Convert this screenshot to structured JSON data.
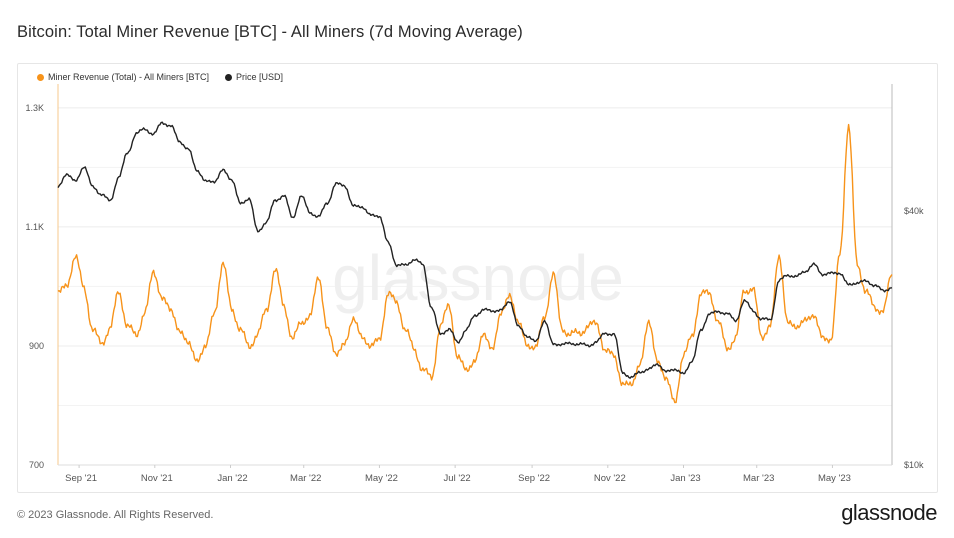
{
  "title": "Bitcoin: Total Miner Revenue [BTC] - All Miners (7d Moving Average)",
  "footer": {
    "copyright": "© 2023 Glassnode. All Rights Reserved.",
    "logo_text": "glassnode"
  },
  "watermark": "glassnode",
  "colors": {
    "revenue": "#f7931a",
    "price": "#222222",
    "grid": "#ececec"
  },
  "chart_data": {
    "type": "line",
    "title": "Bitcoin: Total Miner Revenue [BTC] - All Miners (7d Moving Average)",
    "legend_position": "top-left",
    "grid": true,
    "x_tick_labels": [
      "Sep '21",
      "Nov '21",
      "Jan '22",
      "Mar '22",
      "May '22",
      "Jul '22",
      "Sep '22",
      "Nov '22",
      "Jan '23",
      "Mar '23",
      "May '23"
    ],
    "xlim": [
      "2021-08-15",
      "2023-06-18"
    ],
    "y_left": {
      "ticks": [
        700,
        900,
        1100,
        1300
      ],
      "tick_labels": [
        "700",
        "900",
        "1.1K",
        "1.3K"
      ],
      "ylim": [
        700,
        1340
      ]
    },
    "y_right": {
      "scale": "log",
      "ticks": [
        10000,
        40000
      ],
      "tick_labels": [
        "$10k",
        "$40k"
      ],
      "ylim": [
        10000,
        80000
      ]
    },
    "series": [
      {
        "name": "Miner Revenue (Total) - All Miners [BTC]",
        "axis": "left",
        "points": [
          [
            "2021-08-15",
            985
          ],
          [
            "2021-08-22",
            1005
          ],
          [
            "2021-08-29",
            1047
          ],
          [
            "2021-09-05",
            1000
          ],
          [
            "2021-09-12",
            925
          ],
          [
            "2021-09-19",
            905
          ],
          [
            "2021-09-26",
            930
          ],
          [
            "2021-10-03",
            990
          ],
          [
            "2021-10-10",
            935
          ],
          [
            "2021-10-17",
            915
          ],
          [
            "2021-10-24",
            960
          ],
          [
            "2021-10-31",
            1020
          ],
          [
            "2021-11-07",
            985
          ],
          [
            "2021-11-14",
            955
          ],
          [
            "2021-11-21",
            930
          ],
          [
            "2021-11-28",
            900
          ],
          [
            "2021-12-05",
            880
          ],
          [
            "2021-12-12",
            895
          ],
          [
            "2021-12-19",
            960
          ],
          [
            "2021-12-26",
            1035
          ],
          [
            "2022-01-02",
            965
          ],
          [
            "2022-01-09",
            925
          ],
          [
            "2022-01-16",
            900
          ],
          [
            "2022-01-23",
            920
          ],
          [
            "2022-01-30",
            960
          ],
          [
            "2022-02-06",
            1030
          ],
          [
            "2022-02-13",
            965
          ],
          [
            "2022-02-20",
            915
          ],
          [
            "2022-02-27",
            935
          ],
          [
            "2022-03-06",
            955
          ],
          [
            "2022-03-13",
            1010
          ],
          [
            "2022-03-20",
            935
          ],
          [
            "2022-03-27",
            880
          ],
          [
            "2022-04-03",
            910
          ],
          [
            "2022-04-10",
            940
          ],
          [
            "2022-04-17",
            920
          ],
          [
            "2022-04-24",
            895
          ],
          [
            "2022-05-01",
            915
          ],
          [
            "2022-05-08",
            985
          ],
          [
            "2022-05-15",
            975
          ],
          [
            "2022-05-22",
            925
          ],
          [
            "2022-05-29",
            895
          ],
          [
            "2022-06-05",
            860
          ],
          [
            "2022-06-12",
            845
          ],
          [
            "2022-06-19",
            935
          ],
          [
            "2022-06-26",
            965
          ],
          [
            "2022-07-03",
            885
          ],
          [
            "2022-07-10",
            855
          ],
          [
            "2022-07-17",
            880
          ],
          [
            "2022-07-24",
            915
          ],
          [
            "2022-07-31",
            900
          ],
          [
            "2022-08-07",
            950
          ],
          [
            "2022-08-14",
            990
          ],
          [
            "2022-08-21",
            935
          ],
          [
            "2022-08-28",
            905
          ],
          [
            "2022-09-04",
            895
          ],
          [
            "2022-09-11",
            950
          ],
          [
            "2022-09-18",
            1020
          ],
          [
            "2022-09-25",
            930
          ],
          [
            "2022-10-02",
            920
          ],
          [
            "2022-10-09",
            920
          ],
          [
            "2022-10-16",
            935
          ],
          [
            "2022-10-23",
            935
          ],
          [
            "2022-10-30",
            895
          ],
          [
            "2022-11-06",
            880
          ],
          [
            "2022-11-13",
            840
          ],
          [
            "2022-11-20",
            830
          ],
          [
            "2022-11-27",
            875
          ],
          [
            "2022-12-04",
            935
          ],
          [
            "2022-12-11",
            880
          ],
          [
            "2022-12-18",
            840
          ],
          [
            "2022-12-25",
            810
          ],
          [
            "2023-01-01",
            880
          ],
          [
            "2023-01-08",
            920
          ],
          [
            "2023-01-15",
            985
          ],
          [
            "2023-01-22",
            990
          ],
          [
            "2023-01-29",
            940
          ],
          [
            "2023-02-05",
            895
          ],
          [
            "2023-02-12",
            915
          ],
          [
            "2023-02-19",
            990
          ],
          [
            "2023-02-26",
            1000
          ],
          [
            "2023-03-05",
            910
          ],
          [
            "2023-03-12",
            940
          ],
          [
            "2023-03-19",
            1045
          ],
          [
            "2023-03-26",
            945
          ],
          [
            "2023-04-02",
            925
          ],
          [
            "2023-04-09",
            950
          ],
          [
            "2023-04-16",
            945
          ],
          [
            "2023-04-23",
            920
          ],
          [
            "2023-04-30",
            905
          ],
          [
            "2023-05-07",
            1060
          ],
          [
            "2023-05-14",
            1265
          ],
          [
            "2023-05-21",
            1040
          ],
          [
            "2023-05-28",
            990
          ],
          [
            "2023-06-04",
            965
          ],
          [
            "2023-06-11",
            960
          ],
          [
            "2023-06-18",
            1020
          ]
        ]
      },
      {
        "name": "Price [USD]",
        "axis": "right",
        "points": [
          [
            "2021-08-15",
            46000
          ],
          [
            "2021-08-22",
            48500
          ],
          [
            "2021-08-29",
            47500
          ],
          [
            "2021-09-05",
            50500
          ],
          [
            "2021-09-12",
            46000
          ],
          [
            "2021-09-19",
            43500
          ],
          [
            "2021-09-26",
            42500
          ],
          [
            "2021-10-03",
            48000
          ],
          [
            "2021-10-10",
            55000
          ],
          [
            "2021-10-17",
            61000
          ],
          [
            "2021-10-24",
            62500
          ],
          [
            "2021-10-31",
            61000
          ],
          [
            "2021-11-07",
            64500
          ],
          [
            "2021-11-14",
            64000
          ],
          [
            "2021-11-21",
            58000
          ],
          [
            "2021-11-28",
            56500
          ],
          [
            "2021-12-05",
            49500
          ],
          [
            "2021-12-12",
            47500
          ],
          [
            "2021-12-19",
            46500
          ],
          [
            "2021-12-26",
            50500
          ],
          [
            "2022-01-02",
            47000
          ],
          [
            "2022-01-09",
            42000
          ],
          [
            "2022-01-16",
            42500
          ],
          [
            "2022-01-23",
            36000
          ],
          [
            "2022-01-30",
            37500
          ],
          [
            "2022-02-06",
            42500
          ],
          [
            "2022-02-13",
            43500
          ],
          [
            "2022-02-20",
            38500
          ],
          [
            "2022-02-27",
            43500
          ],
          [
            "2022-03-06",
            39500
          ],
          [
            "2022-03-13",
            39000
          ],
          [
            "2022-03-20",
            41500
          ],
          [
            "2022-03-27",
            46800
          ],
          [
            "2022-04-03",
            45500
          ],
          [
            "2022-04-10",
            41500
          ],
          [
            "2022-04-17",
            40500
          ],
          [
            "2022-04-24",
            39500
          ],
          [
            "2022-05-01",
            38500
          ],
          [
            "2022-05-08",
            34000
          ],
          [
            "2022-05-15",
            29500
          ],
          [
            "2022-05-22",
            30000
          ],
          [
            "2022-05-29",
            30500
          ],
          [
            "2022-06-05",
            30000
          ],
          [
            "2022-06-12",
            23500
          ],
          [
            "2022-06-19",
            20500
          ],
          [
            "2022-06-26",
            21000
          ],
          [
            "2022-07-03",
            19500
          ],
          [
            "2022-07-10",
            21000
          ],
          [
            "2022-07-17",
            22500
          ],
          [
            "2022-07-24",
            23500
          ],
          [
            "2022-07-31",
            23000
          ],
          [
            "2022-08-07",
            23500
          ],
          [
            "2022-08-14",
            24200
          ],
          [
            "2022-08-21",
            21500
          ],
          [
            "2022-08-28",
            20000
          ],
          [
            "2022-09-04",
            19800
          ],
          [
            "2022-09-11",
            21800
          ],
          [
            "2022-09-18",
            19500
          ],
          [
            "2022-09-25",
            19200
          ],
          [
            "2022-10-02",
            19500
          ],
          [
            "2022-10-09",
            19300
          ],
          [
            "2022-10-16",
            19200
          ],
          [
            "2022-10-23",
            19600
          ],
          [
            "2022-10-30",
            20500
          ],
          [
            "2022-11-06",
            20500
          ],
          [
            "2022-11-13",
            16500
          ],
          [
            "2022-11-20",
            16200
          ],
          [
            "2022-11-27",
            16500
          ],
          [
            "2022-12-04",
            17000
          ],
          [
            "2022-12-11",
            17200
          ],
          [
            "2022-12-18",
            16800
          ],
          [
            "2022-12-25",
            16700
          ],
          [
            "2023-01-01",
            16600
          ],
          [
            "2023-01-08",
            17500
          ],
          [
            "2023-01-15",
            21000
          ],
          [
            "2023-01-22",
            22700
          ],
          [
            "2023-01-29",
            23200
          ],
          [
            "2023-02-05",
            22800
          ],
          [
            "2023-02-12",
            22000
          ],
          [
            "2023-02-19",
            24500
          ],
          [
            "2023-02-26",
            23200
          ],
          [
            "2023-03-05",
            22200
          ],
          [
            "2023-03-12",
            22000
          ],
          [
            "2023-03-19",
            27500
          ],
          [
            "2023-03-26",
            28000
          ],
          [
            "2023-04-02",
            28200
          ],
          [
            "2023-04-09",
            28500
          ],
          [
            "2023-04-16",
            30200
          ],
          [
            "2023-04-23",
            28000
          ],
          [
            "2023-04-30",
            28800
          ],
          [
            "2023-05-07",
            28200
          ],
          [
            "2023-05-14",
            27000
          ],
          [
            "2023-05-21",
            26800
          ],
          [
            "2023-05-28",
            27500
          ],
          [
            "2023-06-04",
            26500
          ],
          [
            "2023-06-11",
            26000
          ],
          [
            "2023-06-18",
            26300
          ]
        ]
      }
    ]
  }
}
